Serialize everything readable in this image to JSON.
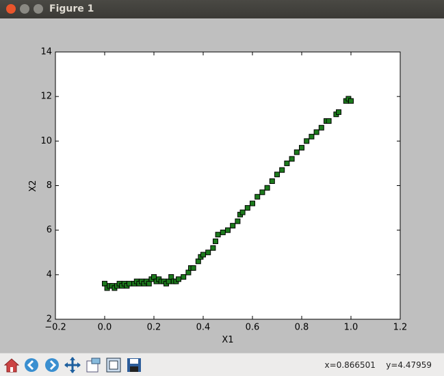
{
  "window": {
    "title": "Figure 1"
  },
  "chart_data": {
    "type": "scatter",
    "xlabel": "X1",
    "ylabel": "X2",
    "x": [
      0.0,
      0.01,
      0.02,
      0.03,
      0.04,
      0.05,
      0.06,
      0.07,
      0.08,
      0.09,
      0.1,
      0.12,
      0.13,
      0.14,
      0.15,
      0.16,
      0.17,
      0.18,
      0.19,
      0.2,
      0.21,
      0.22,
      0.23,
      0.24,
      0.25,
      0.26,
      0.27,
      0.28,
      0.29,
      0.3,
      0.32,
      0.34,
      0.35,
      0.36,
      0.38,
      0.39,
      0.4,
      0.42,
      0.44,
      0.45,
      0.46,
      0.48,
      0.5,
      0.52,
      0.54,
      0.55,
      0.56,
      0.58,
      0.6,
      0.62,
      0.64,
      0.66,
      0.68,
      0.7,
      0.72,
      0.74,
      0.76,
      0.78,
      0.8,
      0.82,
      0.84,
      0.86,
      0.88,
      0.9,
      0.91,
      0.94,
      0.95,
      0.98,
      0.99,
      1.0
    ],
    "values": [
      3.6,
      3.4,
      3.5,
      3.5,
      3.4,
      3.5,
      3.6,
      3.5,
      3.6,
      3.5,
      3.6,
      3.6,
      3.7,
      3.6,
      3.7,
      3.6,
      3.7,
      3.6,
      3.8,
      3.9,
      3.7,
      3.8,
      3.7,
      3.7,
      3.6,
      3.7,
      3.9,
      3.7,
      3.7,
      3.8,
      3.9,
      4.1,
      4.3,
      4.3,
      4.6,
      4.8,
      4.9,
      5.0,
      5.2,
      5.5,
      5.8,
      5.9,
      6.0,
      6.2,
      6.4,
      6.7,
      6.8,
      7.0,
      7.2,
      7.5,
      7.7,
      7.9,
      8.2,
      8.5,
      8.7,
      9.0,
      9.2,
      9.5,
      9.7,
      10.0,
      10.2,
      10.4,
      10.6,
      10.9,
      10.9,
      11.2,
      11.3,
      11.8,
      11.9,
      11.8
    ],
    "color": "#1c7a1c",
    "xlim": [
      -0.2,
      1.2
    ],
    "xticks": [
      {
        "value": -0.2,
        "label": "−0.2"
      },
      {
        "value": 0,
        "label": "0.0"
      },
      0.2,
      0.4,
      0.6,
      0.8,
      {
        "value": 1,
        "label": "1.0"
      },
      1.2
    ],
    "ylim": [
      2,
      14
    ],
    "yticks": [
      2,
      4,
      6,
      8,
      10,
      12,
      14
    ]
  },
  "status": {
    "x": "x=0.866501",
    "y": "y=4.47959"
  }
}
